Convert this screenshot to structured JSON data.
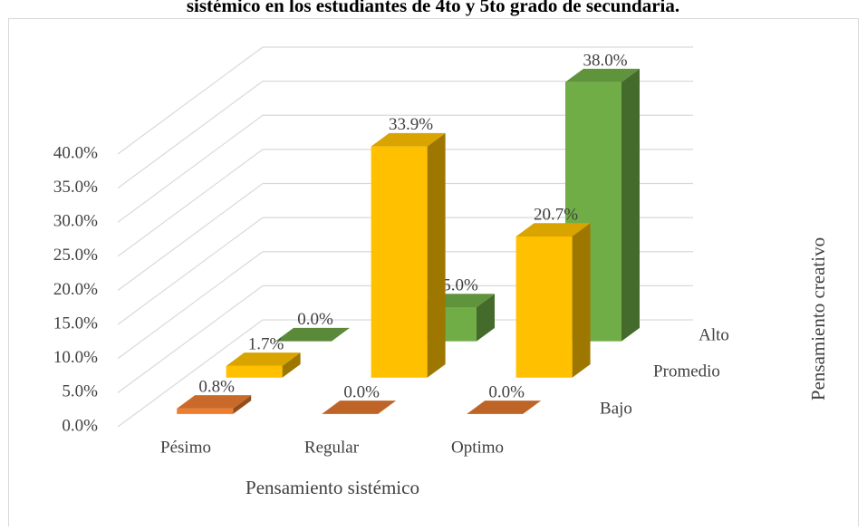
{
  "chart_data": {
    "type": "bar3d",
    "title": "sistémico en los estudiantes de 4to y 5to grado de secundaria.",
    "x_label": "Pensamiento sistémico",
    "z_label": "Pensamiento creativo",
    "categories": [
      "Pésimo",
      "Regular",
      "Optimo"
    ],
    "series": [
      {
        "name": "Bajo",
        "color": "#ed7d31",
        "values": [
          0.8,
          0,
          0
        ],
        "value_labels": [
          "0.8%",
          "0.0%",
          "0.0%"
        ]
      },
      {
        "name": "Promedio",
        "color": "#ffc000",
        "values": [
          1.7,
          33.9,
          20.7
        ],
        "value_labels": [
          "1.7%",
          "33.9%",
          "20.7%"
        ]
      },
      {
        "name": "Alto",
        "color": "#70ad47",
        "values": [
          0,
          5.0,
          38.0
        ],
        "value_labels": [
          "0.0%",
          "5.0%",
          "38.0%"
        ]
      }
    ],
    "ylim": [
      0,
      40
    ],
    "yticks": [
      {
        "value": 0,
        "label": "0.0%"
      },
      {
        "value": 5,
        "label": "5.0%"
      },
      {
        "value": 10,
        "label": "10.0%"
      },
      {
        "value": 15,
        "label": "15.0%"
      },
      {
        "value": 20,
        "label": "20.0%"
      },
      {
        "value": 25,
        "label": "25.0%"
      },
      {
        "value": 30,
        "label": "30.0%"
      },
      {
        "value": 35,
        "label": "35.0%"
      },
      {
        "value": 40,
        "label": "40.0%"
      }
    ],
    "grid": true
  }
}
